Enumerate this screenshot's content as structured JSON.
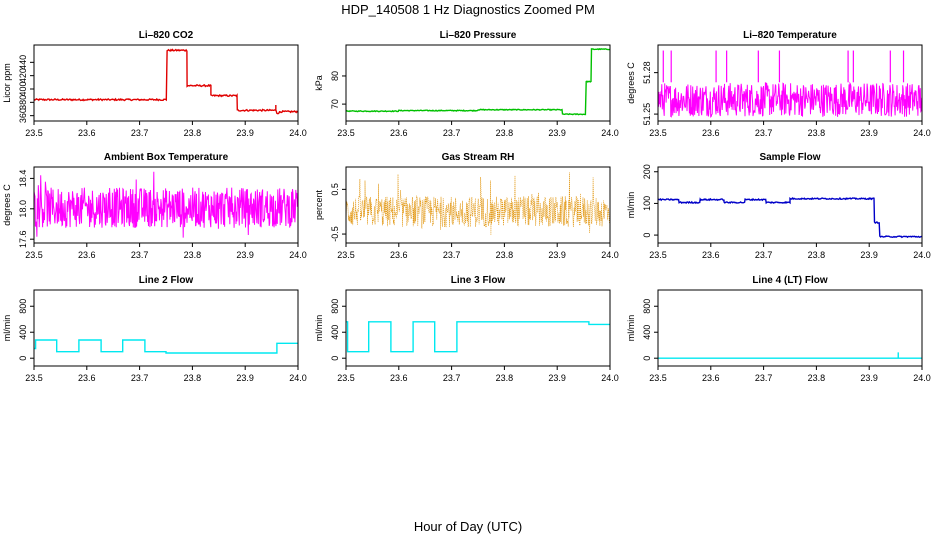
{
  "figure": {
    "title": "HDP_140508  1 Hz Diagnostics Zoomed PM",
    "xlabel": "Hour of Day (UTC)"
  },
  "chart_data": [
    {
      "type": "line",
      "title": "Li–820 CO2",
      "ylabel": "Licor ppm",
      "color": "#e00000",
      "xlim": [
        23.5,
        24.0
      ],
      "xticks": [
        23.5,
        23.6,
        23.7,
        23.8,
        23.9,
        24.0
      ],
      "xtick_labels": [
        "23.5",
        "23.6",
        "23.7",
        "23.8",
        "23.9",
        "24.0"
      ],
      "ylim": [
        352,
        466
      ],
      "yticks": [
        360,
        380,
        400,
        420,
        440
      ],
      "ytick_labels": [
        "360",
        "380",
        "400",
        "420",
        "440"
      ],
      "noise": 1.2,
      "segments": [
        [
          23.5,
          23.752,
          384
        ],
        [
          23.752,
          23.79,
          458
        ],
        [
          23.79,
          23.835,
          405
        ],
        [
          23.835,
          23.885,
          390
        ],
        [
          23.885,
          23.96,
          368
        ],
        [
          23.96,
          23.965,
          364
        ],
        [
          23.965,
          24.0,
          366
        ]
      ],
      "spikes": [
        [
          23.958,
          376
        ]
      ]
    },
    {
      "type": "line",
      "title": "Li–820 Pressure",
      "ylabel": "kPa",
      "color": "#00c000",
      "xlim": [
        23.5,
        24.0
      ],
      "xticks": [
        23.5,
        23.6,
        23.7,
        23.8,
        23.9,
        24.0
      ],
      "xtick_labels": [
        "23.5",
        "23.6",
        "23.7",
        "23.8",
        "23.9",
        "24.0"
      ],
      "ylim": [
        64,
        91
      ],
      "yticks": [
        70,
        80
      ],
      "ytick_labels": [
        "70",
        "80"
      ],
      "noise": 0.15,
      "segments": [
        [
          23.5,
          23.6,
          67.5
        ],
        [
          23.6,
          23.75,
          67.7
        ],
        [
          23.75,
          23.91,
          68.0
        ],
        [
          23.91,
          23.955,
          66.4
        ],
        [
          23.955,
          23.965,
          78
        ],
        [
          23.965,
          24.0,
          89.5
        ]
      ],
      "spikes": []
    },
    {
      "type": "line",
      "title": "Li–820 Temperature",
      "ylabel": "degrees C",
      "color": "#ff00ff",
      "xlim": [
        23.5,
        24.0
      ],
      "xticks": [
        23.5,
        23.6,
        23.7,
        23.8,
        23.9,
        24.0
      ],
      "xtick_labels": [
        "23.5",
        "23.6",
        "23.7",
        "23.8",
        "23.9",
        "24.0"
      ],
      "ylim": [
        51.245,
        51.3
      ],
      "yticks": [
        51.25,
        51.28
      ],
      "ytick_labels": [
        "51.25",
        "51.28"
      ],
      "band": [
        51.248,
        51.273
      ],
      "top_spikes": [
        23.51,
        23.525,
        23.61,
        23.63,
        23.69,
        23.73,
        23.86,
        23.87,
        23.94,
        23.965
      ],
      "spike_top": 51.296
    },
    {
      "type": "line",
      "title": "Ambient Box Temperature",
      "ylabel": "degrees C",
      "color": "#ff00ff",
      "xlim": [
        23.5,
        24.0
      ],
      "xticks": [
        23.5,
        23.6,
        23.7,
        23.8,
        23.9,
        24.0
      ],
      "xtick_labels": [
        "23.5",
        "23.6",
        "23.7",
        "23.8",
        "23.9",
        "24.0"
      ],
      "ylim": [
        17.55,
        18.55
      ],
      "yticks": [
        17.6,
        18.0,
        18.4
      ],
      "ytick_labels": [
        "17.6",
        "18.0",
        "18.4"
      ],
      "band": [
        17.75,
        18.28
      ],
      "spike_range": [
        17.6,
        18.5
      ]
    },
    {
      "type": "scatter",
      "title": "Gas Stream RH",
      "ylabel": "percent",
      "color": "#e09000",
      "xlim": [
        23.5,
        24.0
      ],
      "xticks": [
        23.5,
        23.6,
        23.7,
        23.8,
        23.9,
        24.0
      ],
      "xtick_labels": [
        "23.5",
        "23.6",
        "23.7",
        "23.8",
        "23.9",
        "24.0"
      ],
      "ylim": [
        -0.7,
        1.0
      ],
      "yticks": [
        -0.5,
        0.5
      ],
      "ytick_labels": [
        "-0.5",
        "0.5"
      ],
      "band": [
        -0.35,
        0.35
      ],
      "spike_range": [
        -0.55,
        0.9
      ]
    },
    {
      "type": "line",
      "title": "Sample Flow",
      "ylabel": "ml/min",
      "color": "#0000c8",
      "xlim": [
        23.5,
        24.0
      ],
      "xticks": [
        23.5,
        23.6,
        23.7,
        23.8,
        23.9,
        24.0
      ],
      "xtick_labels": [
        "23.5",
        "23.6",
        "23.7",
        "23.8",
        "23.9",
        "24.0"
      ],
      "ylim": [
        -25,
        215
      ],
      "yticks": [
        0,
        100,
        200
      ],
      "ytick_labels": [
        "0",
        "100",
        "200"
      ],
      "noise": 2,
      "segments": [
        [
          23.5,
          23.54,
          112
        ],
        [
          23.54,
          23.58,
          103
        ],
        [
          23.58,
          23.625,
          112
        ],
        [
          23.625,
          23.665,
          103
        ],
        [
          23.665,
          23.705,
          112
        ],
        [
          23.705,
          23.75,
          103
        ],
        [
          23.75,
          23.91,
          115
        ],
        [
          23.91,
          23.92,
          40
        ],
        [
          23.92,
          24.0,
          -5
        ]
      ],
      "spikes": []
    },
    {
      "type": "line",
      "title": "Line 2 Flow",
      "ylabel": "ml/min",
      "color": "#00e8f0",
      "xlim": [
        23.5,
        24.0
      ],
      "xticks": [
        23.5,
        23.6,
        23.7,
        23.8,
        23.9,
        24.0
      ],
      "xtick_labels": [
        "23.5",
        "23.6",
        "23.7",
        "23.8",
        "23.9",
        "24.0"
      ],
      "ylim": [
        -120,
        1050
      ],
      "yticks": [
        0,
        400,
        800
      ],
      "ytick_labels": [
        "0",
        "400",
        "800"
      ],
      "noise": 0,
      "segments": [
        [
          23.5,
          23.503,
          150
        ],
        [
          23.503,
          23.543,
          280
        ],
        [
          23.543,
          23.585,
          100
        ],
        [
          23.585,
          23.627,
          280
        ],
        [
          23.627,
          23.668,
          100
        ],
        [
          23.668,
          23.71,
          280
        ],
        [
          23.71,
          23.75,
          100
        ],
        [
          23.75,
          23.96,
          80
        ],
        [
          23.96,
          24.0,
          230
        ]
      ],
      "spikes": []
    },
    {
      "type": "line",
      "title": "Line 3 Flow",
      "ylabel": "ml/min",
      "color": "#00e8f0",
      "xlim": [
        23.5,
        24.0
      ],
      "xticks": [
        23.5,
        23.6,
        23.7,
        23.8,
        23.9,
        24.0
      ],
      "xtick_labels": [
        "23.5",
        "23.6",
        "23.7",
        "23.8",
        "23.9",
        "24.0"
      ],
      "ylim": [
        -120,
        1050
      ],
      "yticks": [
        0,
        400,
        800
      ],
      "ytick_labels": [
        "0",
        "400",
        "800"
      ],
      "noise": 0,
      "segments": [
        [
          23.5,
          23.503,
          560
        ],
        [
          23.503,
          23.543,
          100
        ],
        [
          23.543,
          23.585,
          560
        ],
        [
          23.585,
          23.627,
          100
        ],
        [
          23.627,
          23.668,
          560
        ],
        [
          23.668,
          23.71,
          100
        ],
        [
          23.71,
          23.96,
          560
        ],
        [
          23.96,
          24.0,
          520
        ]
      ],
      "spikes": []
    },
    {
      "type": "line",
      "title": "Line 4 (LT) Flow",
      "ylabel": "ml/min",
      "color": "#00e8f0",
      "xlim": [
        23.5,
        24.0
      ],
      "xticks": [
        23.5,
        23.6,
        23.7,
        23.8,
        23.9,
        24.0
      ],
      "xtick_labels": [
        "23.5",
        "23.6",
        "23.7",
        "23.8",
        "23.9",
        "24.0"
      ],
      "ylim": [
        -120,
        1050
      ],
      "yticks": [
        0,
        400,
        800
      ],
      "ytick_labels": [
        "0",
        "400",
        "800"
      ],
      "noise": 0,
      "segments": [
        [
          23.5,
          24.0,
          0
        ]
      ],
      "spikes": [
        [
          23.955,
          90
        ]
      ]
    }
  ]
}
